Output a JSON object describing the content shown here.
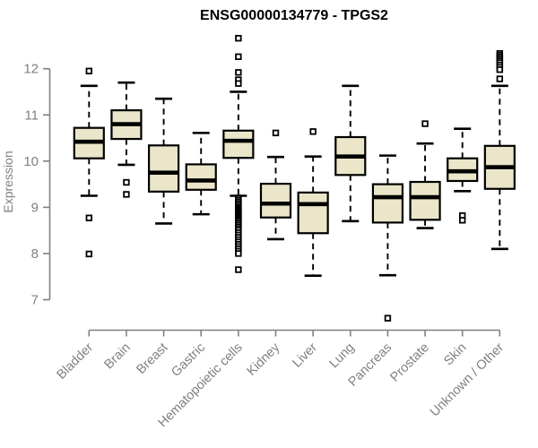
{
  "title": "ENSG00000134779 - TPGS2",
  "colors": {
    "box_fill": "#EBE6C9",
    "box_stroke": "#000000",
    "axis": "#808080",
    "outlier_fill": "#ffffff",
    "background": "#ffffff",
    "title_color": "#000000"
  },
  "chart_data": {
    "type": "box",
    "title": "ENSG00000134779 - TPGS2",
    "xlabel": "",
    "ylabel": "Expression",
    "ylim": [
      7,
      12
    ],
    "yticks": [
      7,
      8,
      9,
      10,
      11,
      12
    ],
    "grid": false,
    "legend": "none",
    "categories": [
      "Bladder",
      "Brain",
      "Breast",
      "Gastric",
      "Hematopoietic cells",
      "Kidney",
      "Liver",
      "Lung",
      "Pancreas",
      "Prostate",
      "Skin",
      "Unknown / Other"
    ],
    "series": [
      {
        "label": "Bladder",
        "whisker_low": 9.25,
        "q1": 10.06,
        "median": 10.42,
        "q3": 10.72,
        "whisker_high": 11.63,
        "outliers": [
          11.95,
          8.77,
          7.99
        ]
      },
      {
        "label": "Brain",
        "whisker_low": 9.92,
        "q1": 10.48,
        "median": 10.8,
        "q3": 11.1,
        "whisker_high": 11.7,
        "outliers": [
          9.54,
          9.28
        ]
      },
      {
        "label": "Breast",
        "whisker_low": 8.65,
        "q1": 9.34,
        "median": 9.75,
        "q3": 10.34,
        "whisker_high": 11.35,
        "outliers": []
      },
      {
        "label": "Gastric",
        "whisker_low": 8.85,
        "q1": 9.38,
        "median": 9.58,
        "q3": 9.93,
        "whisker_high": 10.61,
        "outliers": []
      },
      {
        "label": "Hematopoietic cells",
        "whisker_low": 9.25,
        "q1": 10.07,
        "median": 10.44,
        "q3": 10.66,
        "whisker_high": 11.5,
        "outliers": [
          12.66,
          12.26,
          11.92,
          11.76,
          11.68,
          9.2,
          9.16,
          9.12,
          9.08,
          9.04,
          9.0,
          8.97,
          8.94,
          8.91,
          8.88,
          8.85,
          8.82,
          8.79,
          8.76,
          8.73,
          8.7,
          8.66,
          8.62,
          8.58,
          8.54,
          8.5,
          8.45,
          8.4,
          8.35,
          8.3,
          8.25,
          8.2,
          8.15,
          8.1,
          8.05,
          8.0,
          7.65
        ]
      },
      {
        "label": "Kidney",
        "whisker_low": 8.31,
        "q1": 8.78,
        "median": 9.08,
        "q3": 9.51,
        "whisker_high": 10.09,
        "outliers": [
          10.61
        ]
      },
      {
        "label": "Liver",
        "whisker_low": 7.52,
        "q1": 8.44,
        "median": 9.07,
        "q3": 9.32,
        "whisker_high": 10.1,
        "outliers": [
          10.64
        ]
      },
      {
        "label": "Lung",
        "whisker_low": 8.7,
        "q1": 9.7,
        "median": 10.1,
        "q3": 10.52,
        "whisker_high": 11.63,
        "outliers": []
      },
      {
        "label": "Pancreas",
        "whisker_low": 7.53,
        "q1": 8.67,
        "median": 9.22,
        "q3": 9.5,
        "whisker_high": 10.12,
        "outliers": [
          6.6
        ]
      },
      {
        "label": "Prostate",
        "whisker_low": 8.55,
        "q1": 8.73,
        "median": 9.22,
        "q3": 9.55,
        "whisker_high": 10.38,
        "outliers": [
          10.81
        ]
      },
      {
        "label": "Skin",
        "whisker_low": 9.35,
        "q1": 9.57,
        "median": 9.78,
        "q3": 10.06,
        "whisker_high": 10.7,
        "outliers": [
          8.82,
          8.72
        ]
      },
      {
        "label": "Unknown / Other",
        "whisker_low": 8.1,
        "q1": 9.4,
        "median": 9.87,
        "q3": 10.33,
        "whisker_high": 11.63,
        "outliers": [
          12.33,
          12.29,
          12.25,
          12.21,
          12.17,
          12.13,
          12.08,
          12.03,
          11.98,
          11.78
        ]
      }
    ]
  }
}
